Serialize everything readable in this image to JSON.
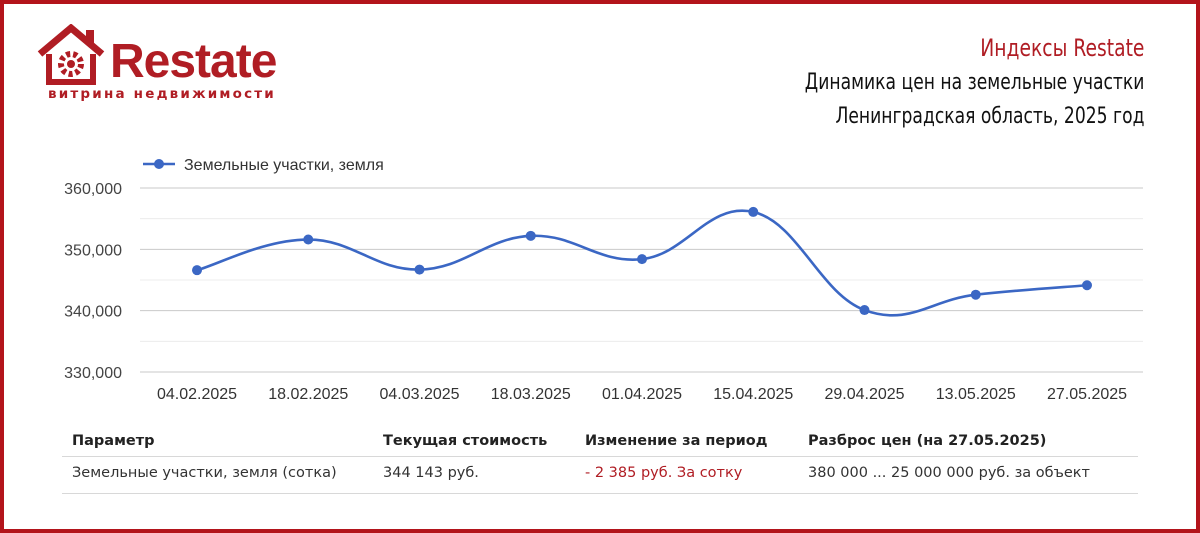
{
  "brand": {
    "name": "Restate",
    "tagline": "витрина недвижимости",
    "color": "#b01d24"
  },
  "header": {
    "title": "Индексы Restate",
    "subtitle_line1": "Динамика цен на земельные участки",
    "subtitle_line2": "Ленинградская область, 2025 год"
  },
  "chart_data": {
    "type": "line",
    "categories": [
      "04.02.2025",
      "18.02.2025",
      "04.03.2025",
      "18.03.2025",
      "01.04.2025",
      "15.04.2025",
      "29.04.2025",
      "13.05.2025",
      "27.05.2025"
    ],
    "series": [
      {
        "name": "Земельные участки, земля",
        "color": "#3b67c4",
        "values": [
          346600,
          351600,
          346700,
          352200,
          348400,
          356100,
          340100,
          342600,
          344143
        ]
      }
    ],
    "ylim": [
      330000,
      360000
    ],
    "yticks": [
      "330,000",
      "340,000",
      "350,000",
      "360,000"
    ],
    "ytick_values": [
      330000,
      340000,
      350000,
      360000
    ],
    "legend_position": "top-left",
    "grid": true,
    "smooth": true
  },
  "table": {
    "headers": [
      "Параметр",
      "Текущая стоимость",
      "Изменение за период",
      "Разброс цен (на 27.05.2025)"
    ],
    "rows": [
      [
        "Земельные участки, земля (сотка)",
        "344 143 руб.",
        "- 2 385 руб. За сотку",
        "380 000 ... 25 000 000 руб. за объект"
      ]
    ]
  }
}
